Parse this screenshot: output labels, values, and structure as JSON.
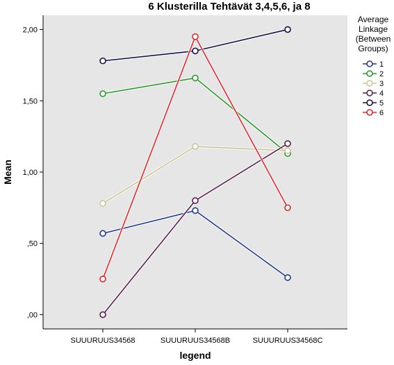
{
  "chart_data": {
    "type": "line",
    "title": "6 Klusterilla Tehtävät 3,4,5,6, ja 8",
    "xlabel": "legend",
    "ylabel": "Mean",
    "categories": [
      "SUUURUUS34568",
      "SUUURUUS34568B",
      "SUUURUUS34568C"
    ],
    "ylim": [
      -0.1,
      2.1
    ],
    "yticks": [
      0.0,
      0.5,
      1.0,
      1.5,
      2.0
    ],
    "ytick_labels": [
      ",00",
      ",50",
      "1,00",
      "1,50",
      "2,00"
    ],
    "grid": false,
    "legend": {
      "title_lines": [
        "Average",
        "Linkage",
        "(Between",
        "Groups)"
      ],
      "placement": "right"
    },
    "series": [
      {
        "name": "1",
        "color": "#1f3b8f",
        "values": [
          0.57,
          0.73,
          0.26
        ]
      },
      {
        "name": "2",
        "color": "#2a9a2a",
        "values": [
          1.55,
          1.66,
          1.13
        ]
      },
      {
        "name": "3",
        "color": "#cfc592",
        "values": [
          0.78,
          1.18,
          1.15
        ]
      },
      {
        "name": "4",
        "color": "#5b1f4f",
        "values": [
          0.0,
          0.8,
          1.2
        ]
      },
      {
        "name": "5",
        "color": "#121247",
        "values": [
          1.78,
          1.85,
          2.0
        ]
      },
      {
        "name": "6",
        "color": "#e3262b",
        "values": [
          0.25,
          1.95,
          0.75
        ]
      }
    ],
    "colors": {
      "plot_background": "#e6e6e6"
    }
  }
}
